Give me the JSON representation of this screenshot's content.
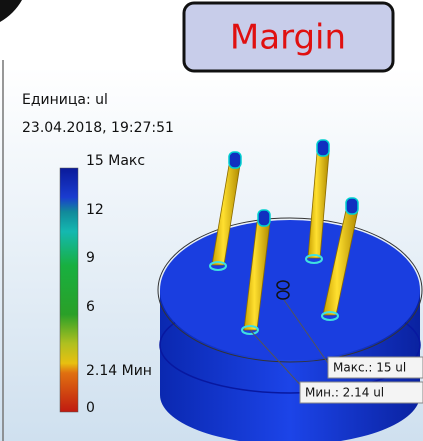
{
  "callout": "Margin",
  "header": {
    "unit": "Единица: ul",
    "date": "23.04.2018, 19:27:51"
  },
  "legend": {
    "labels": [
      "15 Макс",
      "12",
      "9",
      "6",
      "2.14 Мин",
      "0"
    ]
  },
  "probes": {
    "max": "Макс.: 15 ul",
    "min": "Мин.: 2.14 ul"
  }
}
